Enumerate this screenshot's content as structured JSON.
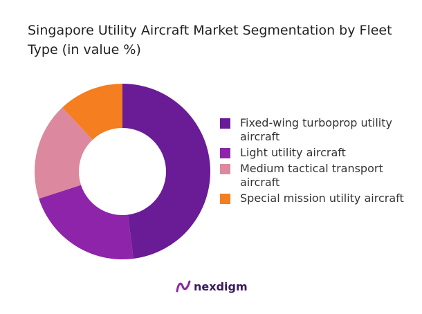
{
  "chart_data": {
    "type": "pie",
    "variant": "donut",
    "title": "Singapore Utility Aircraft Market Segmentation by Fleet Type (in value %)",
    "unit": "%",
    "legend_position": "right",
    "categories": [
      "Fixed-wing turboprop utility aircraft",
      "Light utility aircraft",
      "Medium tactical transport aircraft",
      "Special mission utility aircraft"
    ],
    "values": [
      48,
      22,
      18,
      12
    ],
    "colors": [
      "#6a1b96",
      "#8e24aa",
      "#dc889f",
      "#f47e20"
    ]
  },
  "branding": {
    "logo_text": "nexdigm",
    "logo_color": "#6a1b96"
  }
}
